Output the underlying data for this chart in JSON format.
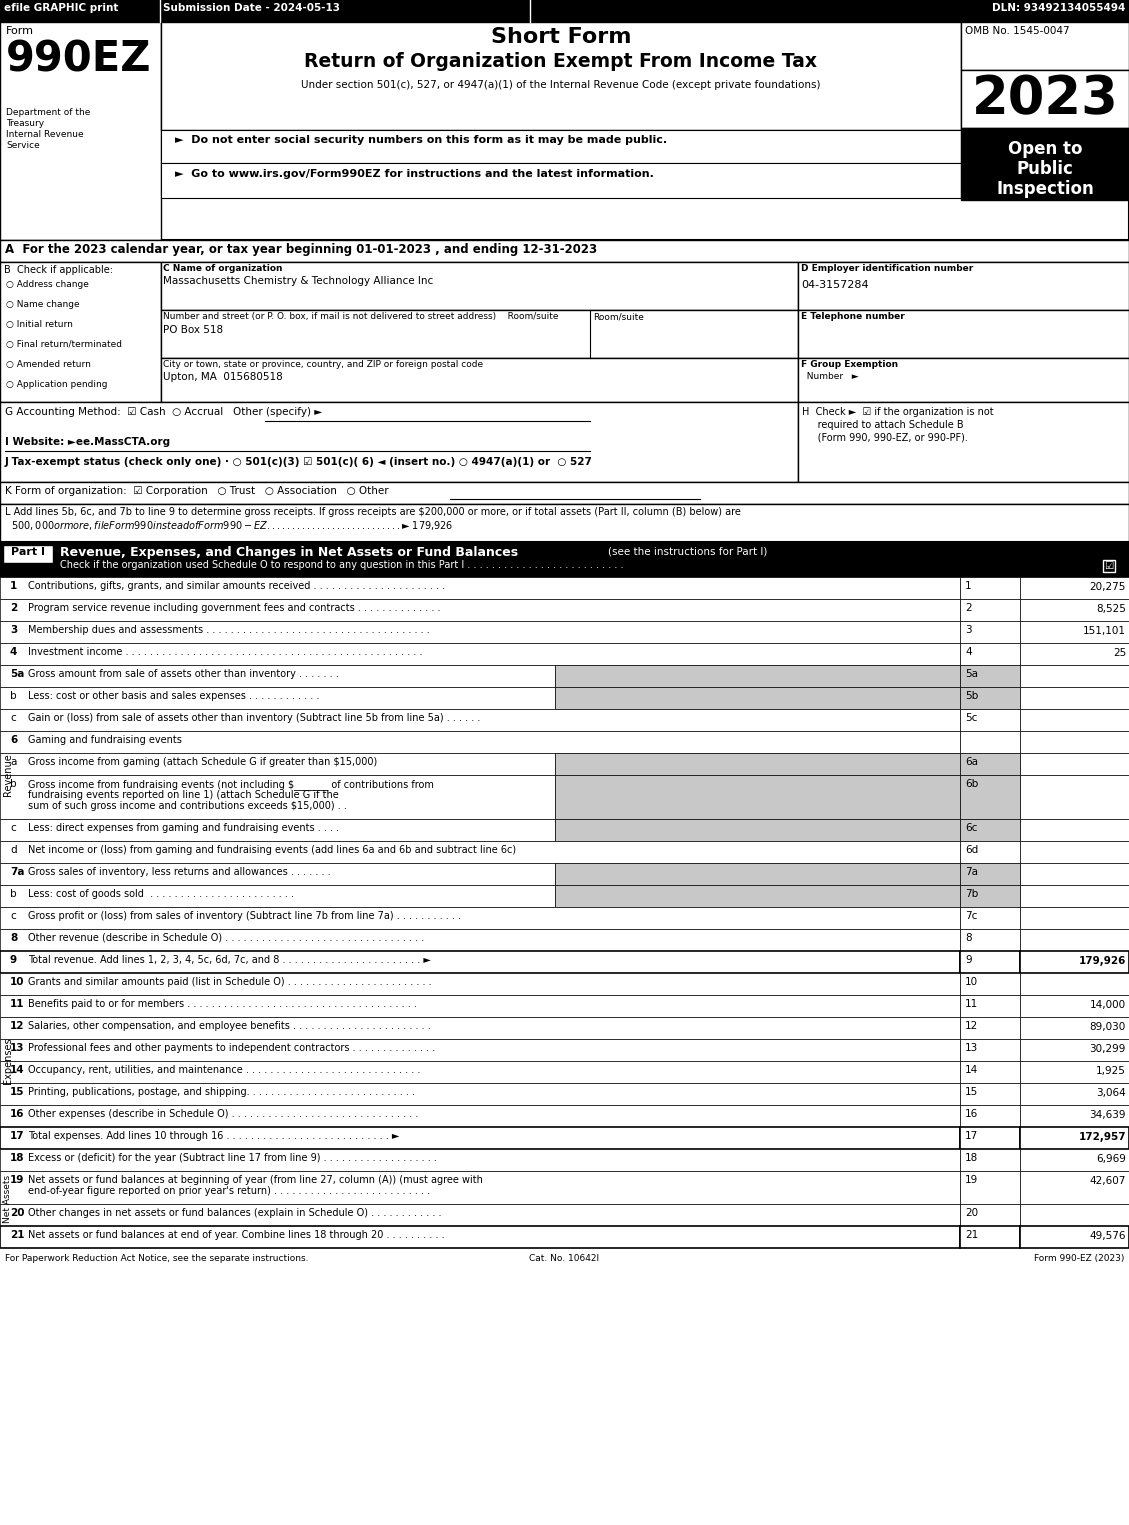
{
  "efile_left": "efile GRAPHIC print",
  "efile_mid": "Submission Date - 2024-05-13",
  "efile_right": "DLN: 93492134055494",
  "form_label": "Form",
  "form_number": "990EZ",
  "short_form": "Short Form",
  "main_title": "Return of Organization Exempt From Income Tax",
  "subtitle": "Under section 501(c), 527, or 4947(a)(1) of the Internal Revenue Code (except private foundations)",
  "bullet1": "►  Do not enter social security numbers on this form as it may be made public.",
  "bullet2": "►  Go to www.irs.gov/Form990EZ for instructions and the latest information.",
  "omb": "OMB No. 1545-0047",
  "year": "2023",
  "open_to": "Open to",
  "public": "Public",
  "inspection": "Inspection",
  "dept1": "Department of the",
  "dept2": "Treasury",
  "dept3": "Internal Revenue",
  "dept4": "Service",
  "line_A": "A  For the 2023 calendar year, or tax year beginning 01-01-2023 , and ending 12-31-2023",
  "line_B": "B  Check if applicable:",
  "checkboxes": [
    "Address change",
    "Name change",
    "Initial return",
    "Final return/terminated",
    "Amended return",
    "Application pending"
  ],
  "line_C": "C Name of organization",
  "org_name": "Massachusetts Chemistry & Technology Alliance Inc",
  "street_label": "Number and street (or P. O. box, if mail is not delivered to street address)    Room/suite",
  "street": "PO Box 518",
  "city_label": "City or town, state or province, country, and ZIP or foreign postal code",
  "city": "Upton, MA  015680518",
  "line_D": "D Employer identification number",
  "ein": "04-3157284",
  "line_E": "E Telephone number",
  "line_F": "F Group Exemption",
  "line_F2": "  Number   ►",
  "line_G": "G Accounting Method:  ☑ Cash  ○ Accrual   Other (specify) ►",
  "line_H1": "H  Check ►  ☑ if the organization is not",
  "line_H2": "     required to attach Schedule B",
  "line_H3": "     (Form 990, 990-EZ, or 990-PF).",
  "line_I": "I Website: ►ee.MassCTA.org",
  "line_J": "J Tax-exempt status (check only one) · ○ 501(c)(3) ☑ 501(c)( 6) ◄ (insert no.) ○ 4947(a)(1) or  ○ 527",
  "line_K": "K Form of organization:  ☑ Corporation   ○ Trust   ○ Association   ○ Other",
  "line_L1": "L Add lines 5b, 6c, and 7b to line 9 to determine gross receipts. If gross receipts are $200,000 or more, or if total assets (Part II, column (B) below) are",
  "line_L2": "  $500,000 or more, file Form 990 instead of Form 990-EZ . . . . . . . . . . . . . . . . . . . . . . . . . . . ►$ 179,926",
  "part1_title": "Revenue, Expenses, and Changes in Net Assets or Fund Balances",
  "part1_sub": "(see the instructions for Part I)",
  "part1_check": "Check if the organization used Schedule O to respond to any question in this Part I . . . . . . . . . . . . . . . . . . . . . . . . . .",
  "footer_left": "For Paperwork Reduction Act Notice, see the separate instructions.",
  "footer_cat": "Cat. No. 10642I",
  "footer_right": "Form 990-EZ (2023)"
}
